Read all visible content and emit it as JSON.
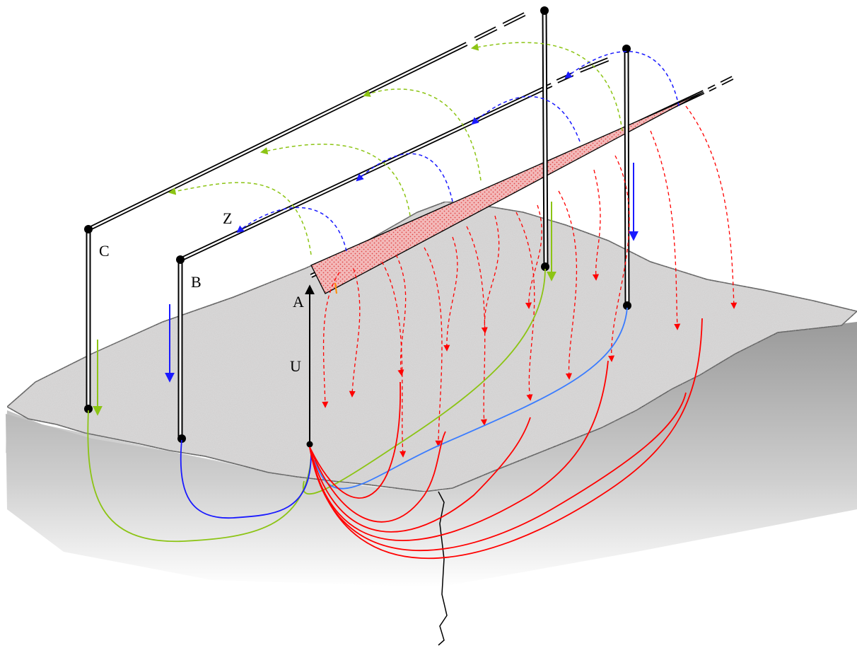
{
  "labels": {
    "A": "A",
    "B": "B",
    "C": "C",
    "U": "U",
    "Z": "Z"
  },
  "colors": {
    "ground_top": "#dedcdc",
    "ground_side": "#a8a8a8",
    "conductor": "#000000",
    "phase_a_fault": "#ff0000",
    "phase_b": "#1a1aff",
    "phase_c": "#8cc414",
    "arc": "#e23a3a"
  }
}
